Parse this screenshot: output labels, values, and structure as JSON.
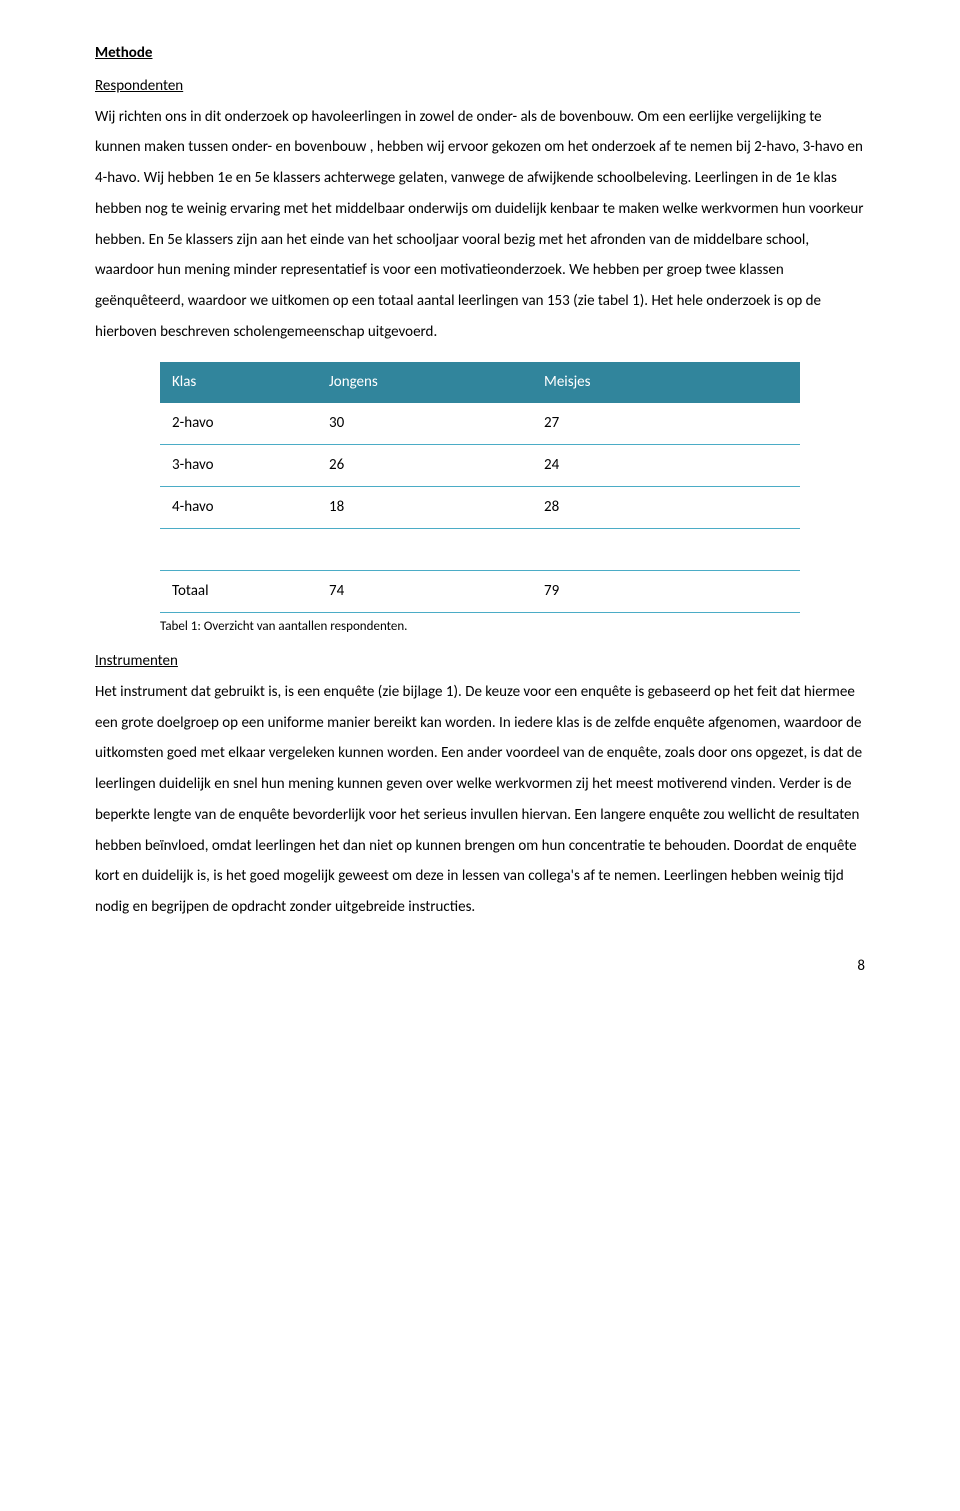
{
  "section1": {
    "title": "Methode",
    "subTitle": "Respondenten",
    "body": "Wij richten ons in dit onderzoek op havoleerlingen in zowel de onder- als de bovenbouw. Om een eerlijke vergelijking te kunnen maken tussen onder- en bovenbouw , hebben wij ervoor gekozen om het onderzoek af te nemen bij 2-havo, 3-havo en 4-havo. Wij hebben 1e en 5e klassers achterwege gelaten, vanwege de afwijkende schoolbeleving. Leerlingen in  de 1e klas hebben nog te weinig ervaring met het middelbaar onderwijs om duidelijk kenbaar te maken welke werkvormen hun voorkeur hebben. En 5e klassers zijn aan het einde van het schooljaar vooral bezig met het afronden van de middelbare school, waardoor hun mening minder representatief is voor een motivatieonderzoek. We hebben per groep twee klassen geënquêteerd, waardoor we uitkomen op een totaal aantal leerlingen van 153 (zie tabel 1). Het hele onderzoek is op de hierboven beschreven scholengemeenschap uitgevoerd."
  },
  "table": {
    "headers": [
      "Klas",
      "Jongens",
      "Meisjes"
    ],
    "rows": [
      [
        "2-havo",
        "30",
        "27"
      ],
      [
        "3-havo",
        "26",
        "24"
      ],
      [
        "4-havo",
        "18",
        "28"
      ],
      [
        "",
        "",
        ""
      ],
      [
        "Totaal",
        "74",
        "79"
      ]
    ],
    "caption": "Tabel 1: Overzicht van aantallen respondenten.",
    "header_bg": "#31859c",
    "header_fg": "#ffffff",
    "border_color": "#4bacc6"
  },
  "section2": {
    "title": "Instrumenten",
    "body": "Het instrument dat gebruikt is, is een enquête (zie bijlage 1). De keuze voor een enquête is gebaseerd op het feit dat hiermee een grote doelgroep op een uniforme manier bereikt kan worden. In iedere klas is de zelfde enquête afgenomen, waardoor de uitkomsten goed met elkaar vergeleken kunnen worden. Een ander voordeel van de enquête, zoals door ons opgezet, is dat de leerlingen duidelijk en snel hun mening kunnen geven over welke werkvormen zij het meest motiverend vinden. Verder is de beperkte lengte van de enquête bevorderlijk voor het serieus invullen hiervan. Een langere enquête zou wellicht de resultaten hebben beïnvloed, omdat leerlingen het dan niet op kunnen brengen om hun concentratie te behouden. Doordat de enquête kort en duidelijk is, is het goed mogelijk geweest om deze in lessen van collega's af te nemen. Leerlingen hebben weinig tijd nodig en begrijpen de opdracht zonder uitgebreide instructies."
  },
  "pageNumber": "8"
}
